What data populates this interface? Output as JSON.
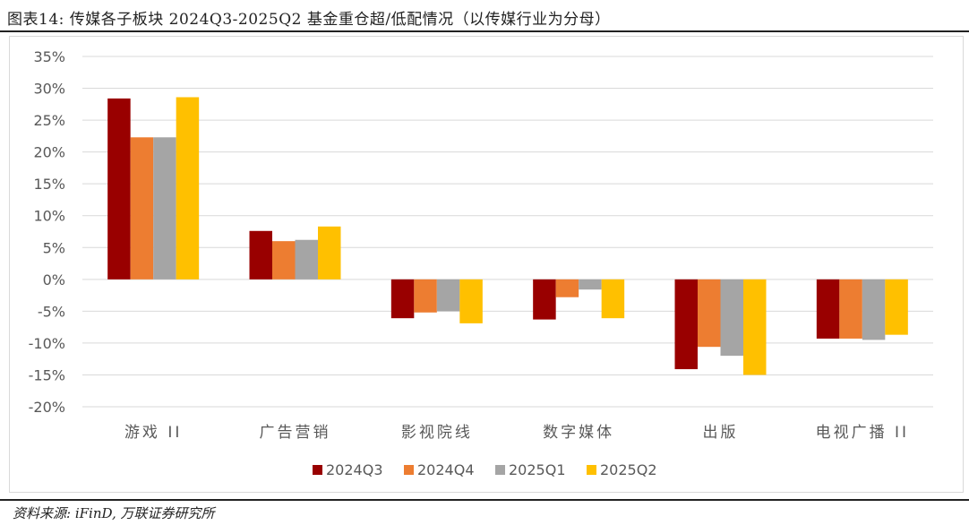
{
  "header": {
    "title": "图表14: 传媒各子板块 2024Q3-2025Q2 基金重仓超/低配情况（以传媒行业为分母）"
  },
  "footer": {
    "source": "资料来源: iFinD, 万联证券研究所"
  },
  "colors": {
    "2024Q3": "#990000",
    "2024Q4": "#ED7D31",
    "2025Q1": "#A5A5A5",
    "2025Q2": "#FFC000",
    "grid": "#d9d9d9",
    "axis_text": "#595959"
  },
  "chart_data": {
    "type": "bar",
    "categories": [
      "游戏 II",
      "广告营销",
      "影视院线",
      "数字媒体",
      "出版",
      "电视广播 II"
    ],
    "series": [
      {
        "name": "2024Q3",
        "values": [
          28.4,
          7.6,
          -6.1,
          -6.3,
          -14.1,
          -9.3
        ]
      },
      {
        "name": "2024Q4",
        "values": [
          22.3,
          6.0,
          -5.2,
          -2.8,
          -10.6,
          -9.3
        ]
      },
      {
        "name": "2025Q1",
        "values": [
          22.3,
          6.2,
          -5.0,
          -1.6,
          -12.0,
          -9.5
        ]
      },
      {
        "name": "2025Q2",
        "values": [
          28.6,
          8.3,
          -6.9,
          -6.1,
          -15.0,
          -8.7
        ]
      }
    ],
    "y_ticks": [
      "35%",
      "30%",
      "25%",
      "20%",
      "15%",
      "10%",
      "5%",
      "0%",
      "-5%",
      "-10%",
      "-15%",
      "-20%"
    ],
    "ylim": [
      -20,
      35
    ],
    "grid": true,
    "legend_position": "bottom",
    "xlabel": "",
    "ylabel": ""
  }
}
